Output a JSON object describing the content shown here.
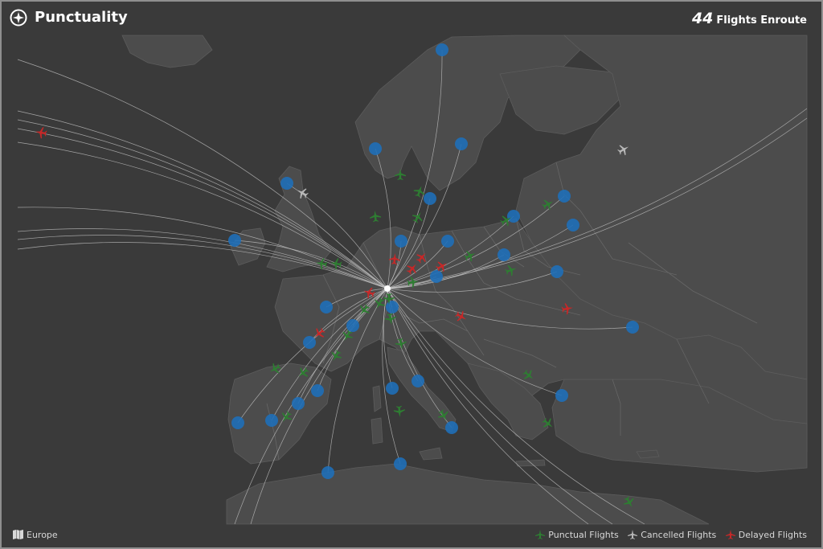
{
  "header": {
    "title": "Punctuality",
    "icon": "compass-icon",
    "flight_count": "44",
    "flight_count_label": "Flights Enroute"
  },
  "footer": {
    "region": "Europe",
    "region_icon": "map-icon"
  },
  "legend": [
    {
      "label": "Punctual Flights",
      "color": "#2e7d32",
      "status": "punctual"
    },
    {
      "label": "Cancelled Flights",
      "color": "#b8b8b8",
      "status": "cancelled"
    },
    {
      "label": "Delayed Flights",
      "color": "#c62828",
      "status": "delayed"
    }
  ],
  "colors": {
    "background": "#3a3a3a",
    "land": "#4c4c4c",
    "border": "#6a6a6a",
    "route": "#c8c8c8",
    "airport": "#1f6fb8",
    "punctual": "#2e7d32",
    "cancelled": "#b8b8b8",
    "delayed": "#c62828"
  }
}
